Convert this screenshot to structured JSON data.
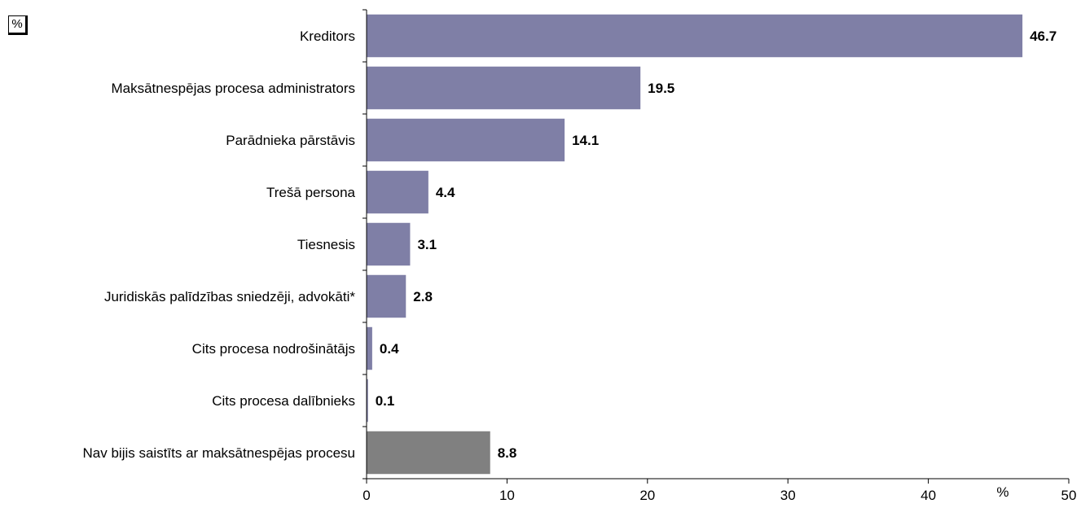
{
  "unit_box": "%",
  "chart_data": {
    "type": "bar",
    "orientation": "horizontal",
    "title": "",
    "xlabel": "%",
    "ylabel": "",
    "xlim": [
      0,
      50
    ],
    "xticks": [
      0,
      10,
      20,
      30,
      40,
      50
    ],
    "grid": false,
    "legend": "none",
    "categories": [
      "Kreditors",
      "Maksātnespējas procesa administrators",
      "Parādnieka pārstāvis",
      "Trešā persona",
      "Tiesnesis",
      "Juridiskās palīdzības sniedzēji, advokāti*",
      "Cits procesa nodrošinātājs",
      "Cits procesa dalībnieks",
      "Nav bijis saistīts ar maksātnespējas procesu"
    ],
    "values": [
      46.7,
      19.5,
      14.1,
      4.4,
      3.1,
      2.8,
      0.4,
      0.1,
      8.8
    ],
    "value_labels": [
      "46.7",
      "19.5",
      "14.1",
      "4.4",
      "3.1",
      "2.8",
      "0.4",
      "0.1",
      "8.8"
    ],
    "bar_colors": [
      "#7f7fa6",
      "#7f7fa6",
      "#7f7fa6",
      "#7f7fa6",
      "#7f7fa6",
      "#7f7fa6",
      "#7f7fa6",
      "#7f7fa6",
      "#808080"
    ]
  }
}
